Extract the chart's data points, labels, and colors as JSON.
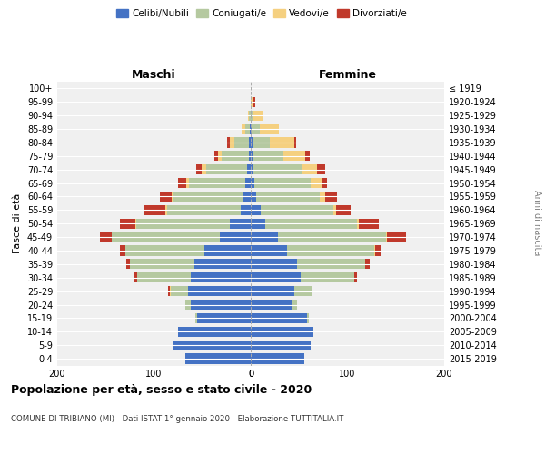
{
  "age_groups": [
    "0-4",
    "5-9",
    "10-14",
    "15-19",
    "20-24",
    "25-29",
    "30-34",
    "35-39",
    "40-44",
    "45-49",
    "50-54",
    "55-59",
    "60-64",
    "65-69",
    "70-74",
    "75-79",
    "80-84",
    "85-89",
    "90-94",
    "95-99",
    "100+"
  ],
  "birth_years": [
    "2015-2019",
    "2010-2014",
    "2005-2009",
    "2000-2004",
    "1995-1999",
    "1990-1994",
    "1985-1989",
    "1980-1984",
    "1975-1979",
    "1970-1974",
    "1965-1969",
    "1960-1964",
    "1955-1959",
    "1950-1954",
    "1945-1949",
    "1940-1944",
    "1935-1939",
    "1930-1934",
    "1925-1929",
    "1920-1924",
    "≤ 1919"
  ],
  "maschi": {
    "celibi": [
      68,
      80,
      75,
      55,
      62,
      65,
      62,
      58,
      48,
      32,
      22,
      10,
      8,
      6,
      4,
      2,
      2,
      1,
      0,
      0,
      0
    ],
    "coniugati": [
      0,
      0,
      0,
      2,
      6,
      18,
      55,
      67,
      82,
      112,
      96,
      76,
      72,
      58,
      42,
      28,
      15,
      5,
      2,
      0,
      0
    ],
    "vedovi": [
      0,
      0,
      0,
      0,
      0,
      1,
      0,
      0,
      0,
      0,
      1,
      2,
      2,
      3,
      5,
      4,
      5,
      3,
      1,
      0,
      0
    ],
    "divorziati": [
      0,
      0,
      0,
      0,
      0,
      1,
      4,
      4,
      5,
      12,
      16,
      22,
      12,
      8,
      5,
      4,
      2,
      0,
      0,
      0,
      0
    ]
  },
  "femmine": {
    "nubili": [
      55,
      62,
      65,
      58,
      42,
      45,
      52,
      48,
      38,
      28,
      15,
      10,
      6,
      4,
      3,
      2,
      2,
      1,
      0,
      0,
      0
    ],
    "coniugate": [
      0,
      0,
      0,
      2,
      6,
      18,
      55,
      70,
      90,
      112,
      95,
      75,
      65,
      58,
      50,
      32,
      18,
      8,
      2,
      0,
      0
    ],
    "vedove": [
      0,
      0,
      0,
      0,
      0,
      0,
      0,
      0,
      1,
      1,
      2,
      3,
      6,
      12,
      16,
      22,
      25,
      20,
      10,
      3,
      0
    ],
    "divorziate": [
      0,
      0,
      0,
      0,
      0,
      0,
      3,
      5,
      6,
      20,
      20,
      15,
      12,
      5,
      8,
      5,
      2,
      0,
      1,
      2,
      0
    ]
  },
  "colors": {
    "celibi": "#4472c4",
    "coniugati": "#b5c9a0",
    "vedovi": "#f5d080",
    "divorziati": "#c0392b"
  },
  "title": "Popolazione per età, sesso e stato civile - 2020",
  "subtitle": "COMUNE DI TRIBIANO (MI) - Dati ISTAT 1° gennaio 2020 - Elaborazione TUTTITALIA.IT",
  "ylabel_left": "Fasce di età",
  "ylabel_right": "Anni di nascita",
  "xlabel_maschi": "Maschi",
  "xlabel_femmine": "Femmine",
  "xlim": 200,
  "legend_labels": [
    "Celibi/Nubili",
    "Coniugati/e",
    "Vedovi/e",
    "Divorziati/e"
  ],
  "bg_color": "#f0f0f0",
  "grid_color": "white"
}
